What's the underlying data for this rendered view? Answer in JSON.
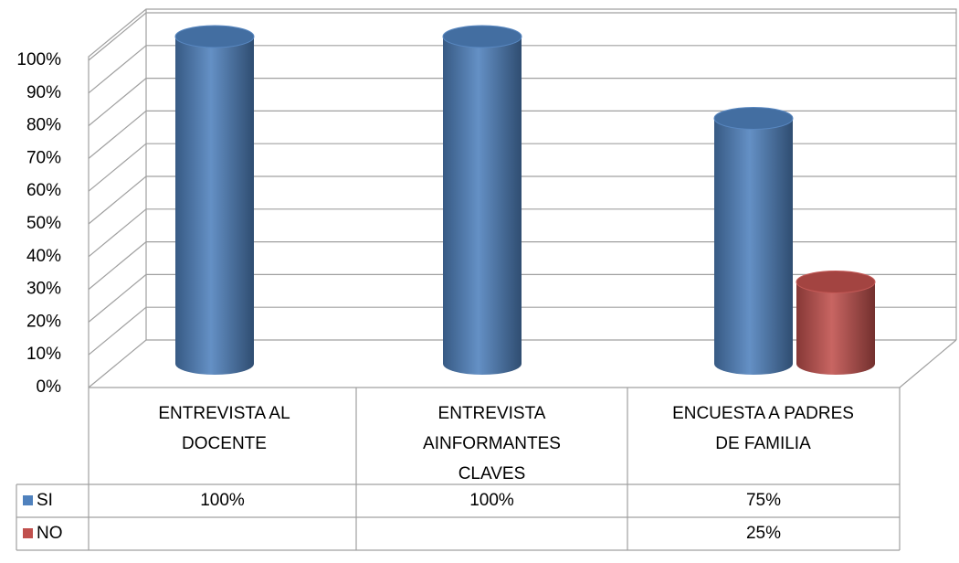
{
  "chart_data": {
    "type": "bar3d",
    "categories": [
      "ENTREVISTA AL\nDOCENTE",
      "ENTREVISTA\nAINFORMANTES\nCLAVES",
      "ENCUESTA A PADRES\nDE FAMILIA"
    ],
    "series": [
      {
        "name": "SI",
        "color": "#4f81bd",
        "values": [
          100,
          100,
          75
        ],
        "value_labels": [
          "100%",
          "100%",
          "75%"
        ]
      },
      {
        "name": "NO",
        "color": "#c0504d",
        "values": [
          null,
          null,
          25
        ],
        "value_labels": [
          null,
          null,
          "25%"
        ]
      }
    ],
    "ylim": [
      0,
      100
    ],
    "yticks": [
      {
        "value": 0,
        "label": "0%"
      },
      {
        "value": 10,
        "label": "10%"
      },
      {
        "value": 20,
        "label": "20%"
      },
      {
        "value": 30,
        "label": "30%"
      },
      {
        "value": 40,
        "label": "40%"
      },
      {
        "value": 50,
        "label": "50%"
      },
      {
        "value": 60,
        "label": "60%"
      },
      {
        "value": 70,
        "label": "70%"
      },
      {
        "value": 80,
        "label": "80%"
      },
      {
        "value": 90,
        "label": "90%"
      },
      {
        "value": 100,
        "label": "100%"
      }
    ],
    "grid": true,
    "data_table": true
  }
}
